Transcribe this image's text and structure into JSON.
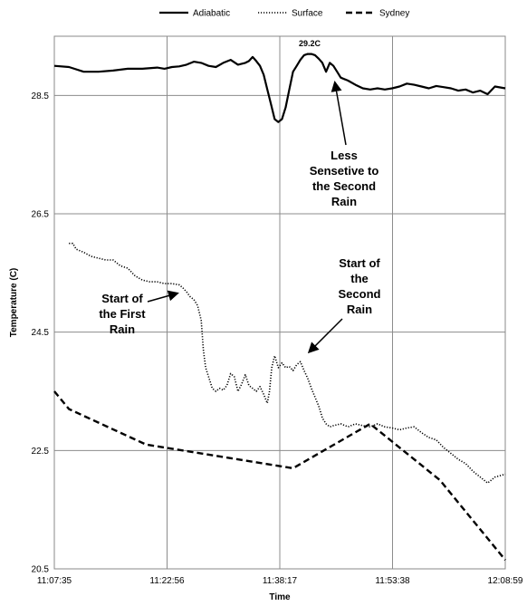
{
  "chart_data": {
    "type": "line",
    "xlabel": "Time",
    "ylabel": "Temperature (C)",
    "x_ticks": [
      "11:07:35",
      "11:22:56",
      "11:38:17",
      "11:53:38",
      "12:08:59"
    ],
    "x_tick_minutes": [
      0,
      15.35,
      30.7,
      46.05,
      61.4
    ],
    "xlim_minutes": [
      0,
      61.4
    ],
    "y_ticks": [
      "20.5",
      "22.5",
      "24.5",
      "26.5",
      "28.5"
    ],
    "ylim": [
      20.5,
      29.5
    ],
    "grid": true,
    "legend": "top-center",
    "series": [
      {
        "name": "Adiabatic",
        "style": "solid",
        "color": "#000000",
        "points": [
          [
            0,
            29.0
          ],
          [
            2,
            28.98
          ],
          [
            4,
            28.9
          ],
          [
            6,
            28.9
          ],
          [
            8,
            28.92
          ],
          [
            10,
            28.95
          ],
          [
            12,
            28.95
          ],
          [
            14,
            28.97
          ],
          [
            15,
            28.95
          ],
          [
            16,
            28.98
          ],
          [
            17,
            28.99
          ],
          [
            18,
            29.02
          ],
          [
            19,
            29.07
          ],
          [
            20,
            29.05
          ],
          [
            21,
            29.0
          ],
          [
            22,
            28.98
          ],
          [
            23,
            29.05
          ],
          [
            24,
            29.1
          ],
          [
            25,
            29.02
          ],
          [
            26,
            29.05
          ],
          [
            26.5,
            29.08
          ],
          [
            27,
            29.15
          ],
          [
            27.5,
            29.08
          ],
          [
            28,
            29.0
          ],
          [
            28.5,
            28.85
          ],
          [
            29,
            28.6
          ],
          [
            29.5,
            28.35
          ],
          [
            30,
            28.1
          ],
          [
            30.5,
            28.05
          ],
          [
            31,
            28.1
          ],
          [
            31.5,
            28.3
          ],
          [
            32,
            28.6
          ],
          [
            32.5,
            28.9
          ],
          [
            33,
            29.0
          ],
          [
            33.5,
            29.1
          ],
          [
            34,
            29.18
          ],
          [
            34.5,
            29.2
          ],
          [
            35,
            29.2
          ],
          [
            35.5,
            29.18
          ],
          [
            36,
            29.12
          ],
          [
            36.5,
            29.05
          ],
          [
            37,
            28.9
          ],
          [
            37.5,
            29.05
          ],
          [
            38,
            29.0
          ],
          [
            38.5,
            28.9
          ],
          [
            39,
            28.8
          ],
          [
            40,
            28.75
          ],
          [
            41,
            28.68
          ],
          [
            42,
            28.62
          ],
          [
            43,
            28.6
          ],
          [
            44,
            28.62
          ],
          [
            45,
            28.6
          ],
          [
            46,
            28.62
          ],
          [
            47,
            28.65
          ],
          [
            48,
            28.7
          ],
          [
            49,
            28.68
          ],
          [
            50,
            28.65
          ],
          [
            51,
            28.62
          ],
          [
            52,
            28.66
          ],
          [
            53,
            28.64
          ],
          [
            54,
            28.62
          ],
          [
            55,
            28.58
          ],
          [
            56,
            28.6
          ],
          [
            57,
            28.55
          ],
          [
            58,
            28.58
          ],
          [
            59,
            28.52
          ],
          [
            60,
            28.65
          ],
          [
            61.4,
            28.62
          ]
        ]
      },
      {
        "name": "Surface",
        "style": "dotted",
        "color": "#000000",
        "points": [
          [
            2,
            26.0
          ],
          [
            2.5,
            26.0
          ],
          [
            3,
            25.9
          ],
          [
            4,
            25.85
          ],
          [
            5,
            25.78
          ],
          [
            6,
            25.75
          ],
          [
            7,
            25.72
          ],
          [
            8,
            25.72
          ],
          [
            9,
            25.62
          ],
          [
            10,
            25.58
          ],
          [
            11,
            25.45
          ],
          [
            12,
            25.38
          ],
          [
            13,
            25.35
          ],
          [
            14,
            25.35
          ],
          [
            15,
            25.32
          ],
          [
            16,
            25.32
          ],
          [
            17,
            25.3
          ],
          [
            17.5,
            25.25
          ],
          [
            18,
            25.18
          ],
          [
            18.5,
            25.1
          ],
          [
            19,
            25.05
          ],
          [
            19.5,
            24.95
          ],
          [
            20,
            24.7
          ],
          [
            20.3,
            24.2
          ],
          [
            20.6,
            23.9
          ],
          [
            21,
            23.75
          ],
          [
            21.5,
            23.55
          ],
          [
            22,
            23.5
          ],
          [
            22.5,
            23.55
          ],
          [
            23,
            23.52
          ],
          [
            23.5,
            23.6
          ],
          [
            24,
            23.8
          ],
          [
            24.5,
            23.75
          ],
          [
            25,
            23.5
          ],
          [
            25.5,
            23.62
          ],
          [
            26,
            23.78
          ],
          [
            26.5,
            23.6
          ],
          [
            27,
            23.55
          ],
          [
            27.5,
            23.5
          ],
          [
            28,
            23.58
          ],
          [
            28.5,
            23.45
          ],
          [
            29,
            23.3
          ],
          [
            29.3,
            23.5
          ],
          [
            29.6,
            23.9
          ],
          [
            30,
            24.1
          ],
          [
            30.5,
            23.9
          ],
          [
            31,
            23.98
          ],
          [
            31.5,
            23.9
          ],
          [
            32,
            23.92
          ],
          [
            32.5,
            23.85
          ],
          [
            33,
            23.95
          ],
          [
            33.5,
            24.0
          ],
          [
            34,
            23.85
          ],
          [
            34.5,
            23.72
          ],
          [
            35,
            23.55
          ],
          [
            35.5,
            23.4
          ],
          [
            36,
            23.25
          ],
          [
            36.5,
            23.05
          ],
          [
            37,
            22.95
          ],
          [
            37.5,
            22.9
          ],
          [
            38,
            22.92
          ],
          [
            39,
            22.95
          ],
          [
            40,
            22.9
          ],
          [
            41,
            22.95
          ],
          [
            42,
            22.92
          ],
          [
            43,
            22.9
          ],
          [
            44,
            22.95
          ],
          [
            45,
            22.9
          ],
          [
            46,
            22.88
          ],
          [
            47,
            22.85
          ],
          [
            48,
            22.88
          ],
          [
            49,
            22.9
          ],
          [
            50,
            22.8
          ],
          [
            51,
            22.72
          ],
          [
            52,
            22.68
          ],
          [
            53,
            22.55
          ],
          [
            54,
            22.45
          ],
          [
            55,
            22.35
          ],
          [
            56,
            22.28
          ],
          [
            57,
            22.15
          ],
          [
            58,
            22.05
          ],
          [
            59,
            21.95
          ],
          [
            60,
            22.05
          ],
          [
            61.4,
            22.1
          ]
        ]
      },
      {
        "name": "Sydney",
        "style": "dashed",
        "color": "#000000",
        "points": [
          [
            0,
            23.5
          ],
          [
            2,
            23.2
          ],
          [
            12.5,
            22.6
          ],
          [
            32.5,
            22.2
          ],
          [
            43,
            22.95
          ],
          [
            52.5,
            22.0
          ],
          [
            61.4,
            20.65
          ]
        ]
      }
    ]
  },
  "annotations": {
    "peak_label": "29.2C",
    "less_sensitive": [
      "Less",
      "Sensetive to",
      "the Second",
      "Rain"
    ],
    "first_rain": [
      "Start of",
      "the First",
      "Rain"
    ],
    "second_rain": [
      "Start of",
      "the",
      "Second",
      "Rain"
    ]
  }
}
